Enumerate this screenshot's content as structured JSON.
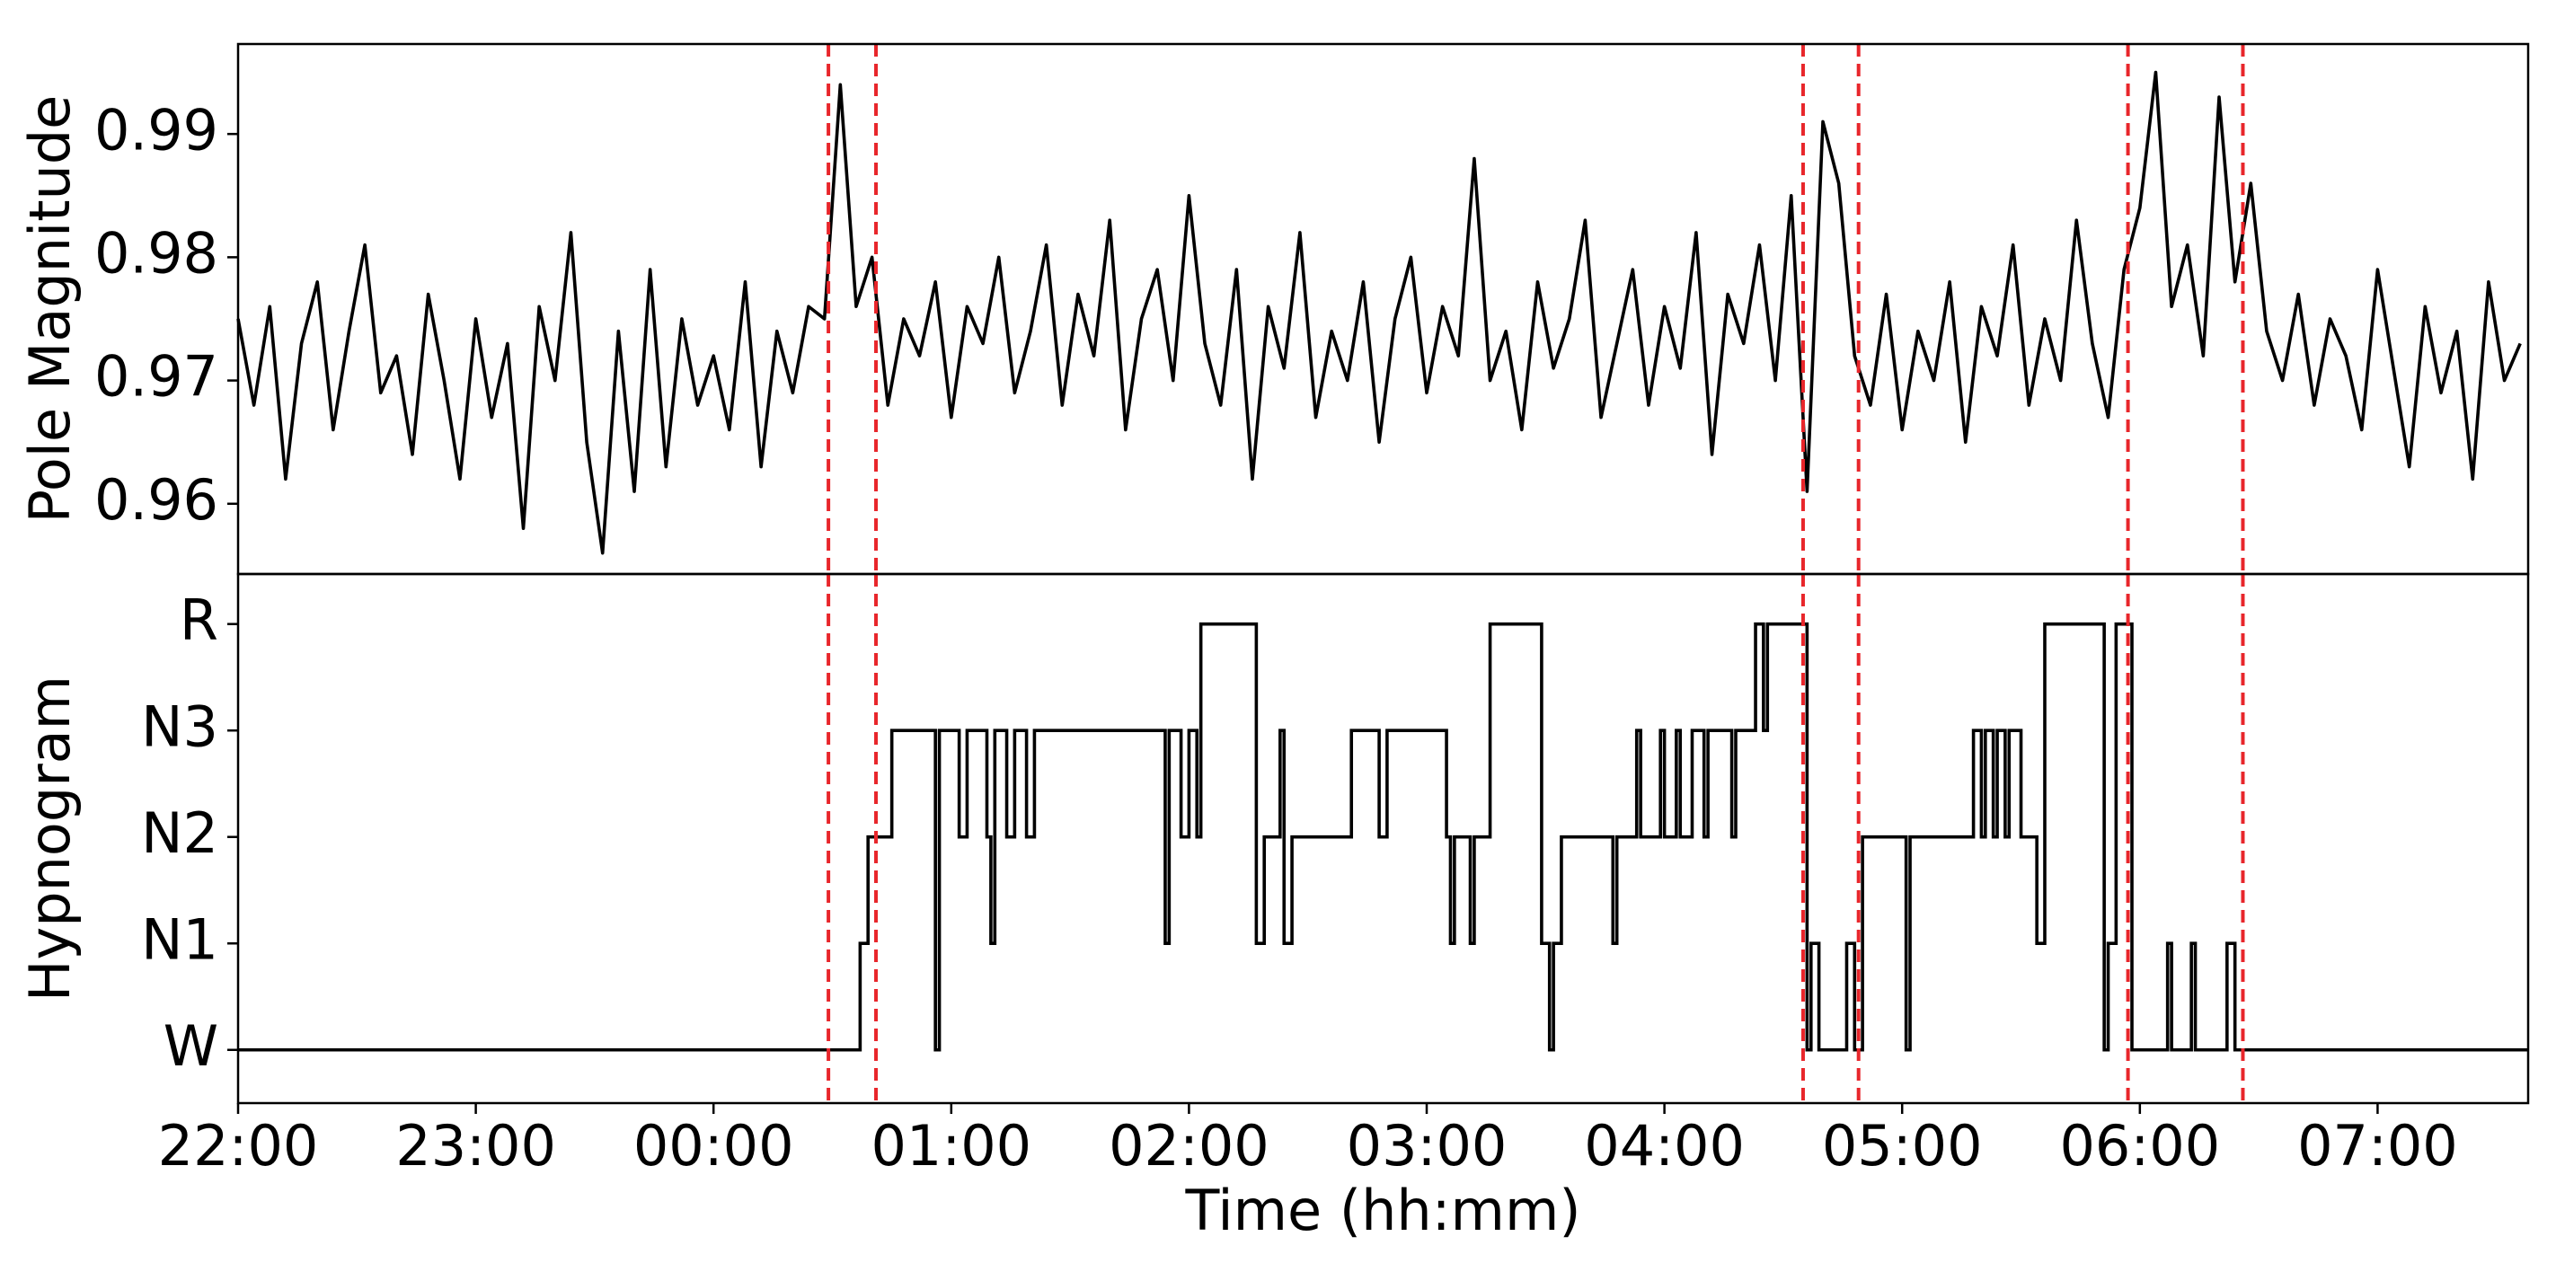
{
  "chart_data": [
    {
      "type": "line",
      "ylabel": "Pole Magnitude",
      "color": "#000000",
      "x": [
        0,
        4,
        8,
        12,
        16,
        20,
        24,
        28,
        32,
        36,
        40,
        44,
        48,
        52,
        56,
        60,
        64,
        68,
        72,
        76,
        80,
        84,
        88,
        92,
        96,
        100,
        104,
        108,
        112,
        116,
        120,
        124,
        128,
        132,
        136,
        140,
        144,
        148,
        152,
        156,
        160,
        164,
        168,
        172,
        176,
        180,
        184,
        188,
        192,
        196,
        200,
        204,
        208,
        212,
        216,
        220,
        224,
        228,
        232,
        236,
        240,
        244,
        248,
        252,
        256,
        260,
        264,
        268,
        272,
        276,
        280,
        284,
        288,
        292,
        296,
        300,
        304,
        308,
        312,
        316,
        320,
        324,
        328,
        332,
        336,
        340,
        344,
        348,
        352,
        356,
        360,
        364,
        368,
        372,
        376,
        380,
        384,
        388,
        392,
        396,
        400,
        404,
        408,
        412,
        416,
        420,
        424,
        428,
        432,
        436,
        440,
        444,
        448,
        452,
        456,
        460,
        464,
        468,
        472,
        476,
        480,
        484,
        488,
        492,
        496,
        500,
        504,
        508,
        512,
        516,
        520,
        524,
        528,
        532,
        536,
        540,
        544,
        548,
        552,
        556,
        560,
        564,
        568,
        572,
        576
      ],
      "values": [
        0.975,
        0.968,
        0.976,
        0.962,
        0.973,
        0.978,
        0.966,
        0.974,
        0.981,
        0.969,
        0.972,
        0.964,
        0.977,
        0.97,
        0.962,
        0.975,
        0.967,
        0.973,
        0.958,
        0.976,
        0.97,
        0.982,
        0.965,
        0.956,
        0.974,
        0.961,
        0.979,
        0.963,
        0.975,
        0.968,
        0.972,
        0.966,
        0.978,
        0.963,
        0.974,
        0.969,
        0.976,
        0.975,
        0.994,
        0.976,
        0.98,
        0.968,
        0.975,
        0.972,
        0.978,
        0.967,
        0.976,
        0.973,
        0.98,
        0.969,
        0.974,
        0.981,
        0.968,
        0.977,
        0.972,
        0.983,
        0.966,
        0.975,
        0.979,
        0.97,
        0.985,
        0.973,
        0.968,
        0.979,
        0.962,
        0.976,
        0.971,
        0.982,
        0.967,
        0.974,
        0.97,
        0.978,
        0.965,
        0.975,
        0.98,
        0.969,
        0.976,
        0.972,
        0.988,
        0.97,
        0.974,
        0.966,
        0.978,
        0.971,
        0.975,
        0.983,
        0.967,
        0.973,
        0.979,
        0.968,
        0.976,
        0.971,
        0.982,
        0.964,
        0.977,
        0.973,
        0.981,
        0.97,
        0.985,
        0.961,
        0.991,
        0.986,
        0.972,
        0.968,
        0.977,
        0.966,
        0.974,
        0.97,
        0.978,
        0.965,
        0.976,
        0.972,
        0.981,
        0.968,
        0.975,
        0.97,
        0.983,
        0.973,
        0.967,
        0.979,
        0.984,
        0.995,
        0.976,
        0.981,
        0.972,
        0.993,
        0.978,
        0.986,
        0.974,
        0.97,
        0.977,
        0.968,
        0.975,
        0.972,
        0.966,
        0.979,
        0.971,
        0.963,
        0.976,
        0.969,
        0.974,
        0.962,
        0.978,
        0.97,
        0.973
      ],
      "xlim": [
        0,
        578
      ],
      "ylim": [
        0.9543,
        0.9973
      ],
      "yticks": [
        0.96,
        0.97,
        0.98,
        0.99
      ],
      "vlines": {
        "x": [
          149,
          161,
          395,
          409,
          477,
          506
        ],
        "color": "#e8262b"
      }
    },
    {
      "type": "step",
      "ylabel": "Hypnogram",
      "xlabel": "Time (hh:mm)",
      "color": "#000000",
      "x": [
        0,
        157,
        159,
        165,
        176,
        177,
        182,
        184,
        189,
        190,
        191,
        194,
        196,
        199,
        201,
        234,
        235,
        238,
        240,
        242,
        243,
        257,
        259,
        263,
        264,
        266,
        281,
        288,
        290,
        305,
        306,
        307,
        311,
        312,
        316,
        329,
        331,
        332,
        334,
        347,
        348,
        353,
        354,
        359,
        360,
        363,
        364,
        367,
        370,
        371,
        377,
        378,
        383,
        385,
        386,
        396,
        397,
        399,
        406,
        408,
        410,
        421,
        422,
        438,
        440,
        441,
        443,
        444,
        446,
        447,
        450,
        454,
        456,
        471,
        472,
        474,
        478,
        487,
        488,
        493,
        494,
        502,
        504,
        578
      ],
      "values": [
        0,
        1,
        2,
        3,
        0,
        3,
        2,
        3,
        2,
        1,
        3,
        2,
        3,
        2,
        3,
        1,
        3,
        2,
        3,
        2,
        4,
        1,
        2,
        3,
        1,
        2,
        3,
        2,
        3,
        2,
        1,
        2,
        1,
        2,
        4,
        1,
        0,
        1,
        2,
        1,
        2,
        3,
        2,
        3,
        2,
        3,
        2,
        3,
        2,
        3,
        2,
        3,
        4,
        3,
        4,
        0,
        1,
        0,
        1,
        0,
        2,
        0,
        2,
        3,
        2,
        3,
        2,
        3,
        2,
        3,
        2,
        1,
        4,
        0,
        1,
        4,
        0,
        1,
        0,
        1,
        0,
        1,
        0,
        0
      ],
      "xlim": [
        0,
        578
      ],
      "ylim": [
        -0.5,
        4.47
      ],
      "yticks": [
        {
          "value": 0,
          "label": "W"
        },
        {
          "value": 1,
          "label": "N1"
        },
        {
          "value": 2,
          "label": "N2"
        },
        {
          "value": 3,
          "label": "N3"
        },
        {
          "value": 4,
          "label": "R"
        }
      ],
      "xticks": [
        {
          "value": 0,
          "label": "22:00"
        },
        {
          "value": 60,
          "label": "23:00"
        },
        {
          "value": 120,
          "label": "00:00"
        },
        {
          "value": 180,
          "label": "01:00"
        },
        {
          "value": 240,
          "label": "02:00"
        },
        {
          "value": 300,
          "label": "03:00"
        },
        {
          "value": 360,
          "label": "04:00"
        },
        {
          "value": 420,
          "label": "05:00"
        },
        {
          "value": 480,
          "label": "06:00"
        },
        {
          "value": 540,
          "label": "07:00"
        }
      ],
      "vlines": {
        "x": [
          149,
          161,
          395,
          409,
          477,
          506
        ],
        "color": "#e8262b"
      }
    }
  ]
}
